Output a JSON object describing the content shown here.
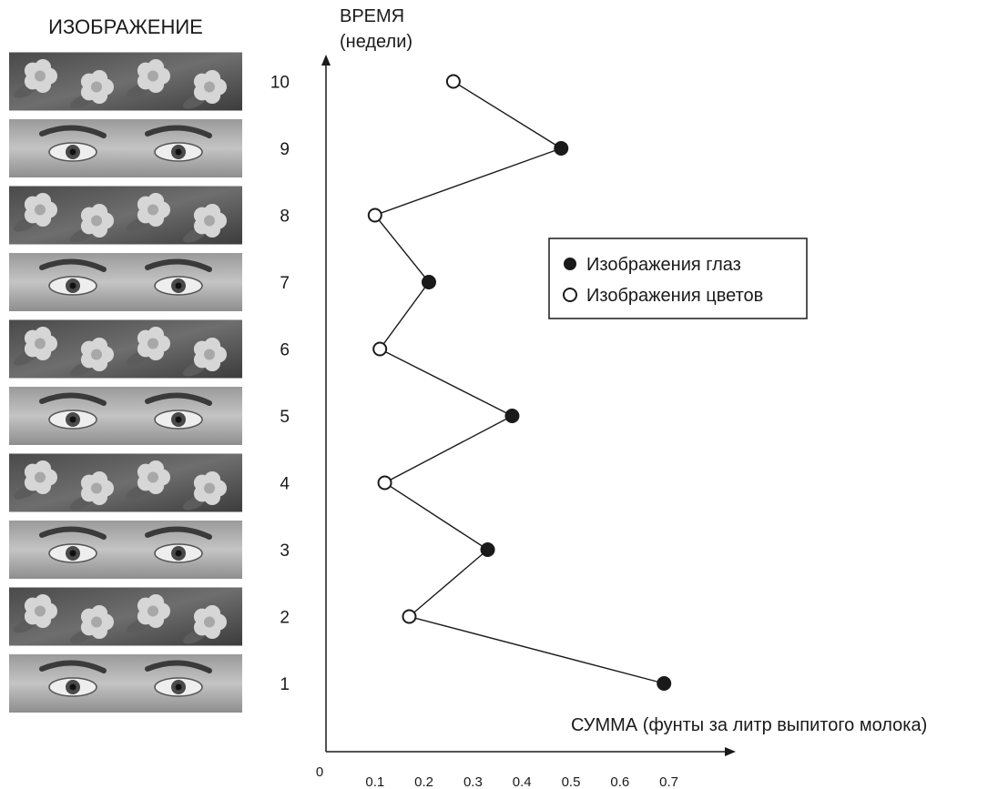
{
  "chart_data": {
    "type": "line",
    "image_column_title": "ИЗОБРАЖЕНИЕ",
    "ylabel_line1": "ВРЕМЯ",
    "ylabel_line2": "(недели)",
    "xlabel": "СУММА (фунты за литр выпитого молока)",
    "x_zero_label": "0",
    "xticks": [
      "0.1",
      "0.2",
      "0.3",
      "0.4",
      "0.5",
      "0.6",
      "0.7"
    ],
    "yticks": [
      "1",
      "2",
      "3",
      "4",
      "5",
      "6",
      "7",
      "8",
      "9",
      "10"
    ],
    "xlim": [
      0,
      0.75
    ],
    "ylim": [
      0,
      10.5
    ],
    "grid": false,
    "legend_position": "right-middle",
    "series": [
      {
        "name": "Изображения глаз",
        "marker": "filled-circle",
        "weeks": [
          1,
          3,
          5,
          7,
          9
        ]
      },
      {
        "name": "Изображения цветов",
        "marker": "open-circle",
        "weeks": [
          2,
          4,
          6,
          8,
          10
        ]
      }
    ],
    "points": [
      {
        "week": 1,
        "value": 0.69,
        "type": "eyes"
      },
      {
        "week": 2,
        "value": 0.17,
        "type": "flowers"
      },
      {
        "week": 3,
        "value": 0.33,
        "type": "eyes"
      },
      {
        "week": 4,
        "value": 0.12,
        "type": "flowers"
      },
      {
        "week": 5,
        "value": 0.38,
        "type": "eyes"
      },
      {
        "week": 6,
        "value": 0.11,
        "type": "flowers"
      },
      {
        "week": 7,
        "value": 0.21,
        "type": "eyes"
      },
      {
        "week": 8,
        "value": 0.1,
        "type": "flowers"
      },
      {
        "week": 9,
        "value": 0.48,
        "type": "eyes"
      },
      {
        "week": 10,
        "value": 0.26,
        "type": "flowers"
      }
    ],
    "image_column": [
      "flowers",
      "eyes",
      "flowers",
      "eyes",
      "flowers",
      "eyes",
      "flowers",
      "eyes",
      "flowers",
      "eyes"
    ]
  },
  "colors": {
    "ink": "#1a1a1a",
    "photo_dark": "#3a3a3a",
    "photo_mid": "#8a8a8a",
    "photo_light": "#d6d6d6"
  }
}
